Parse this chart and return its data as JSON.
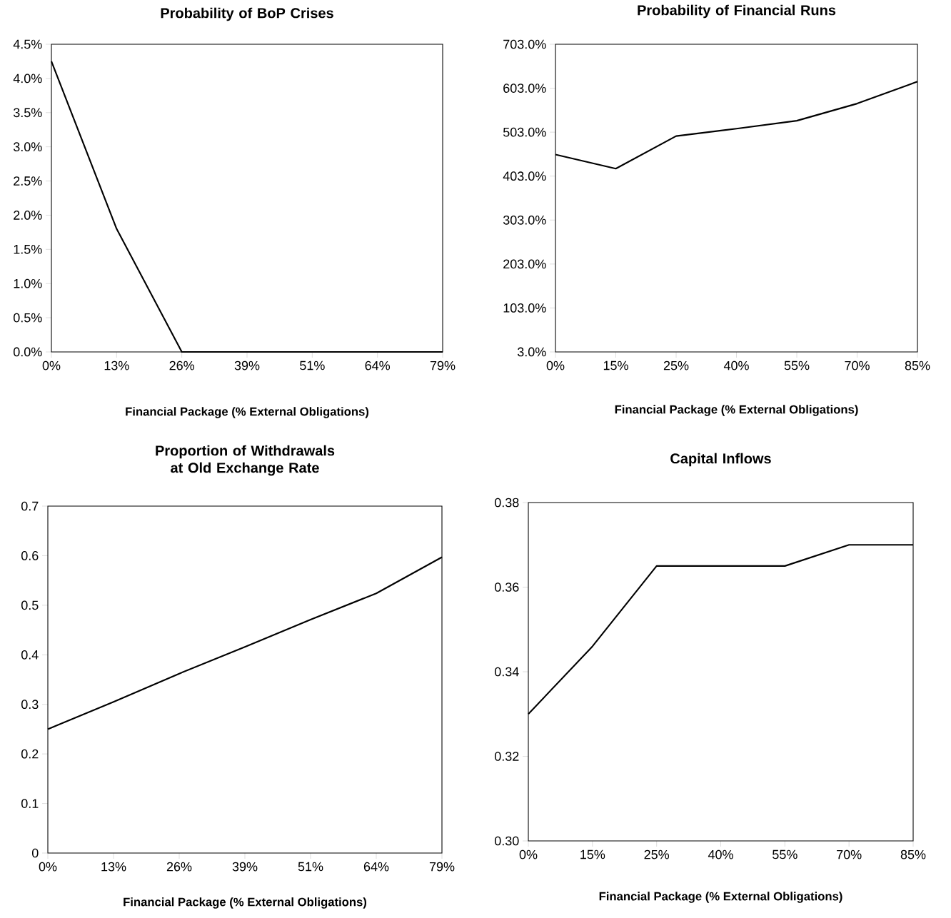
{
  "chart_data": [
    {
      "type": "line",
      "title": "Probability of BoP Crises",
      "xlabel": "Financial Package (% External Obligations)",
      "categories": [
        "0%",
        "13%",
        "26%",
        "39%",
        "51%",
        "64%",
        "79%"
      ],
      "series": [
        {
          "color": "#000000",
          "values": [
            4.25,
            1.8,
            0,
            0,
            0,
            0,
            0
          ]
        }
      ],
      "ylim": [
        0,
        4.5
      ],
      "yticks": [
        {
          "value": 0,
          "label": "0.0%"
        },
        {
          "value": 0.5,
          "label": "0.5%"
        },
        {
          "value": 1,
          "label": "1.0%"
        },
        {
          "value": 1.5,
          "label": "1.5%"
        },
        {
          "value": 2,
          "label": "2.0%"
        },
        {
          "value": 2.5,
          "label": "2.5%"
        },
        {
          "value": 3,
          "label": "3.0%"
        },
        {
          "value": 3.5,
          "label": "3.5%"
        },
        {
          "value": 4,
          "label": "4.0%"
        },
        {
          "value": 4.5,
          "label": "4.5%"
        }
      ]
    },
    {
      "type": "line",
      "title": "Probability of Financial Runs",
      "xlabel": "Financial Package (% External Obligations)",
      "categories": [
        "0%",
        "15%",
        "25%",
        "40%",
        "55%",
        "70%",
        "85%"
      ],
      "series": [
        {
          "color": "#000000",
          "values": [
            452,
            420,
            494,
            511,
            529,
            568,
            618
          ]
        }
      ],
      "ylim": [
        3,
        703
      ],
      "yticks": [
        {
          "value": 3,
          "label": "3.0%"
        },
        {
          "value": 103,
          "label": "103.0%"
        },
        {
          "value": 203,
          "label": "203.0%"
        },
        {
          "value": 303,
          "label": "303.0%"
        },
        {
          "value": 403,
          "label": "403.0%"
        },
        {
          "value": 503,
          "label": "503.0%"
        },
        {
          "value": 603,
          "label": "603.0%"
        },
        {
          "value": 703,
          "label": "703.0%"
        }
      ]
    },
    {
      "type": "line",
      "title": "Proportion of Withdrawals at Old Exchange Rate",
      "xlabel": "Financial Package (% External Obligations)",
      "categories": [
        "0%",
        "13%",
        "26%",
        "39%",
        "51%",
        "64%",
        "79%"
      ],
      "series": [
        {
          "color": "#000000",
          "values": [
            0.25,
            0.305,
            0.362,
            0.416,
            0.471,
            0.524,
            0.597
          ]
        }
      ],
      "ylim": [
        0,
        0.7
      ],
      "yticks": [
        0,
        0.1,
        0.2,
        0.3,
        0.4,
        0.5,
        0.6,
        0.7
      ]
    },
    {
      "type": "line",
      "title": "Capital Inflows",
      "xlabel": "Financial Package (% External Obligations)",
      "categories": [
        "0%",
        "15%",
        "25%",
        "40%",
        "55%",
        "70%",
        "85%"
      ],
      "series": [
        {
          "color": "#000000",
          "values": [
            0.33,
            0.346,
            0.365,
            0.365,
            0.365,
            0.37,
            0.37
          ]
        }
      ],
      "ylim": [
        0.3,
        0.38
      ],
      "yticks": [
        {
          "value": 0.3,
          "label": "0.30"
        },
        {
          "value": 0.32,
          "label": "0.32"
        },
        {
          "value": 0.34,
          "label": "0.34"
        },
        {
          "value": 0.36,
          "label": "0.36"
        },
        {
          "value": 0.38,
          "label": "0.38"
        }
      ]
    }
  ]
}
